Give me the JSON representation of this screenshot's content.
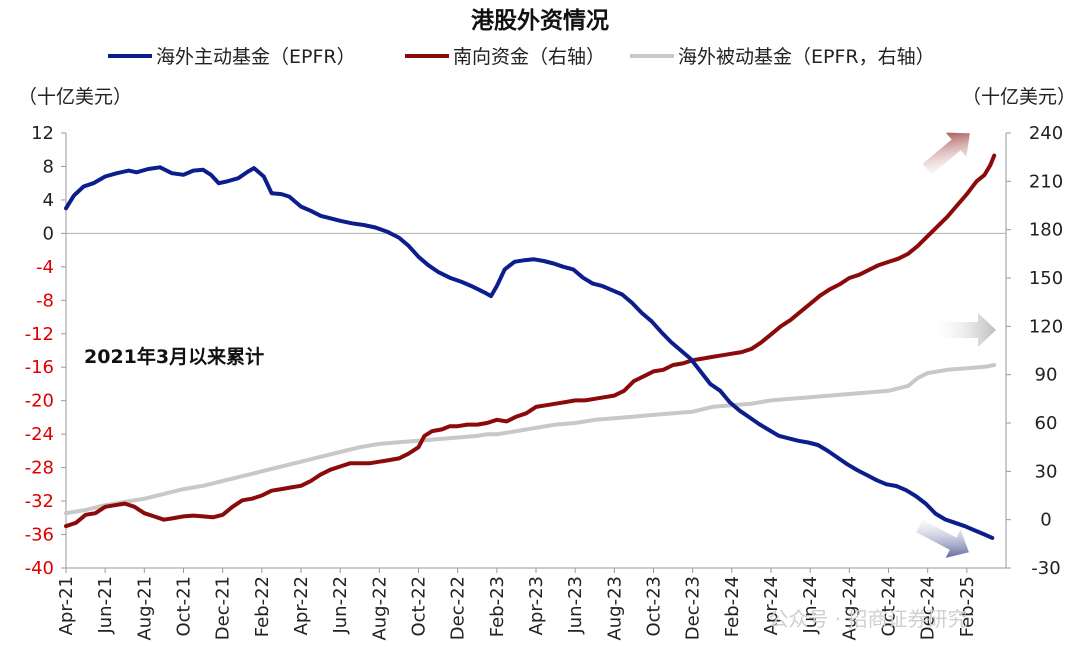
{
  "chart_data": {
    "type": "line",
    "title": "港股外资情况",
    "left_axis": {
      "unit": "（十亿美元）",
      "range": [
        -40,
        12
      ],
      "ticks": [
        12,
        8,
        4,
        0,
        -4,
        -8,
        -12,
        -16,
        -20,
        -24,
        -28,
        -32,
        -36,
        -40
      ],
      "negative_tick_color": "#e00000"
    },
    "right_axis": {
      "unit": "（十亿美元）",
      "range": [
        -30,
        240
      ],
      "ticks": [
        240,
        210,
        180,
        150,
        120,
        90,
        60,
        30,
        0,
        -30
      ]
    },
    "x_axis": {
      "start": "2021-04",
      "end": "2025-03",
      "tick_labels": [
        "Apr-21",
        "Jun-21",
        "Aug-21",
        "Oct-21",
        "Dec-21",
        "Feb-22",
        "Apr-22",
        "Jun-22",
        "Aug-22",
        "Oct-22",
        "Dec-22",
        "Feb-23",
        "Apr-23",
        "Jun-23",
        "Aug-23",
        "Oct-23",
        "Dec-23",
        "Feb-24",
        "Apr-24",
        "Jun-24",
        "Aug-24",
        "Oct-24",
        "Dec-24",
        "Feb-25"
      ]
    },
    "annotation": "2021年3月以来累计",
    "watermark": "公众号 · 招商证券研究",
    "series": [
      {
        "name": "海外主动基金（EPFR）",
        "axis": "left",
        "color": "#0b1e8c",
        "points": [
          [
            0,
            3
          ],
          [
            0.4,
            4.5
          ],
          [
            0.9,
            5.6
          ],
          [
            1.4,
            6.0
          ],
          [
            2,
            6.8
          ],
          [
            2.6,
            7.2
          ],
          [
            3.2,
            7.5
          ],
          [
            3.6,
            7.3
          ],
          [
            4.2,
            7.7
          ],
          [
            4.8,
            7.9
          ],
          [
            5.4,
            7.2
          ],
          [
            6,
            7.0
          ],
          [
            6.5,
            7.5
          ],
          [
            7,
            7.6
          ],
          [
            7.4,
            7.0
          ],
          [
            7.8,
            6.0
          ],
          [
            8.2,
            6.2
          ],
          [
            8.8,
            6.6
          ],
          [
            9.3,
            7.4
          ],
          [
            9.6,
            7.8
          ],
          [
            10.1,
            6.8
          ],
          [
            10.5,
            4.8
          ],
          [
            11,
            4.7
          ],
          [
            11.4,
            4.4
          ],
          [
            12,
            3.2
          ],
          [
            12.5,
            2.7
          ],
          [
            13,
            2.1
          ],
          [
            13.5,
            1.8
          ],
          [
            14,
            1.5
          ],
          [
            14.6,
            1.2
          ],
          [
            15.2,
            1.0
          ],
          [
            15.8,
            0.7
          ],
          [
            16.4,
            0.2
          ],
          [
            17,
            -0.5
          ],
          [
            17.5,
            -1.5
          ],
          [
            18,
            -2.8
          ],
          [
            18.5,
            -3.8
          ],
          [
            19,
            -4.6
          ],
          [
            19.6,
            -5.3
          ],
          [
            20.2,
            -5.8
          ],
          [
            20.8,
            -6.4
          ],
          [
            21.4,
            -7.1
          ],
          [
            21.7,
            -7.5
          ],
          [
            22,
            -6.3
          ],
          [
            22.4,
            -4.3
          ],
          [
            22.9,
            -3.4
          ],
          [
            23.4,
            -3.2
          ],
          [
            23.9,
            -3.1
          ],
          [
            24.4,
            -3.3
          ],
          [
            24.9,
            -3.6
          ],
          [
            25.4,
            -4.0
          ],
          [
            25.9,
            -4.3
          ],
          [
            26.4,
            -5.3
          ],
          [
            26.9,
            -6.0
          ],
          [
            27.4,
            -6.3
          ],
          [
            27.9,
            -6.8
          ],
          [
            28.4,
            -7.3
          ],
          [
            28.9,
            -8.3
          ],
          [
            29.4,
            -9.5
          ],
          [
            29.9,
            -10.5
          ],
          [
            30.4,
            -11.8
          ],
          [
            30.9,
            -13.0
          ],
          [
            31.4,
            -14.0
          ],
          [
            31.9,
            -15.0
          ],
          [
            32.4,
            -16.5
          ],
          [
            32.9,
            -18.0
          ],
          [
            33.4,
            -18.8
          ],
          [
            33.9,
            -20.2
          ],
          [
            34.4,
            -21.2
          ],
          [
            34.9,
            -22.0
          ],
          [
            35.4,
            -22.8
          ],
          [
            35.9,
            -23.5
          ],
          [
            36.4,
            -24.2
          ],
          [
            36.9,
            -24.5
          ],
          [
            37.4,
            -24.8
          ],
          [
            37.9,
            -25.0
          ],
          [
            38.4,
            -25.3
          ],
          [
            38.9,
            -26.0
          ],
          [
            39.4,
            -26.8
          ],
          [
            39.9,
            -27.6
          ],
          [
            40.4,
            -28.3
          ],
          [
            40.9,
            -28.9
          ],
          [
            41.4,
            -29.5
          ],
          [
            41.9,
            -30.0
          ],
          [
            42.4,
            -30.2
          ],
          [
            42.9,
            -30.7
          ],
          [
            43.4,
            -31.4
          ],
          [
            43.9,
            -32.3
          ],
          [
            44.4,
            -33.5
          ],
          [
            44.9,
            -34.2
          ],
          [
            45.4,
            -34.6
          ],
          [
            45.9,
            -35.0
          ],
          [
            46.4,
            -35.5
          ],
          [
            46.9,
            -36.0
          ],
          [
            47.3,
            -36.4
          ]
        ]
      },
      {
        "name": "南向资金（右轴）",
        "axis": "right",
        "color": "#8b0a0a",
        "points": [
          [
            0,
            -4
          ],
          [
            0.5,
            -2
          ],
          [
            1,
            3
          ],
          [
            1.5,
            4
          ],
          [
            2,
            8
          ],
          [
            2.5,
            9
          ],
          [
            3,
            10
          ],
          [
            3.5,
            8
          ],
          [
            4,
            4
          ],
          [
            4.5,
            2
          ],
          [
            5,
            0
          ],
          [
            5.5,
            1
          ],
          [
            6,
            2
          ],
          [
            6.5,
            2.5
          ],
          [
            7,
            2
          ],
          [
            7.5,
            1.5
          ],
          [
            8,
            3
          ],
          [
            8.5,
            8
          ],
          [
            9,
            12
          ],
          [
            9.5,
            13
          ],
          [
            10,
            15
          ],
          [
            10.5,
            18
          ],
          [
            11,
            19
          ],
          [
            11.5,
            20
          ],
          [
            12,
            21
          ],
          [
            12.5,
            24
          ],
          [
            13,
            28
          ],
          [
            13.5,
            31
          ],
          [
            14,
            33
          ],
          [
            14.5,
            35
          ],
          [
            15,
            35
          ],
          [
            15.5,
            35
          ],
          [
            16,
            36
          ],
          [
            16.5,
            37
          ],
          [
            17,
            38
          ],
          [
            17.5,
            41
          ],
          [
            18,
            45
          ],
          [
            18.3,
            52
          ],
          [
            18.7,
            55
          ],
          [
            19.2,
            56
          ],
          [
            19.6,
            58
          ],
          [
            20,
            58
          ],
          [
            20.5,
            59
          ],
          [
            21,
            59
          ],
          [
            21.5,
            60
          ],
          [
            22,
            62
          ],
          [
            22.5,
            61
          ],
          [
            23,
            64
          ],
          [
            23.5,
            66
          ],
          [
            24,
            70
          ],
          [
            24.5,
            71
          ],
          [
            25,
            72
          ],
          [
            25.5,
            73
          ],
          [
            26,
            74
          ],
          [
            26.5,
            74
          ],
          [
            27,
            75
          ],
          [
            27.5,
            76
          ],
          [
            28,
            77
          ],
          [
            28.5,
            80
          ],
          [
            29,
            86
          ],
          [
            29.5,
            89
          ],
          [
            30,
            92
          ],
          [
            30.5,
            93
          ],
          [
            31,
            96
          ],
          [
            31.5,
            97
          ],
          [
            32,
            99
          ],
          [
            32.5,
            100
          ],
          [
            33,
            101
          ],
          [
            33.5,
            102
          ],
          [
            34,
            103
          ],
          [
            34.5,
            104
          ],
          [
            35,
            106
          ],
          [
            35.5,
            110
          ],
          [
            36,
            115
          ],
          [
            36.5,
            120
          ],
          [
            37,
            124
          ],
          [
            37.5,
            129
          ],
          [
            38,
            134
          ],
          [
            38.5,
            139
          ],
          [
            39,
            143
          ],
          [
            39.5,
            146
          ],
          [
            40,
            150
          ],
          [
            40.5,
            152
          ],
          [
            41,
            155
          ],
          [
            41.5,
            158
          ],
          [
            42,
            160
          ],
          [
            42.5,
            162
          ],
          [
            43,
            165
          ],
          [
            43.5,
            170
          ],
          [
            44,
            176
          ],
          [
            44.5,
            182
          ],
          [
            45,
            188
          ],
          [
            45.5,
            195
          ],
          [
            46,
            202
          ],
          [
            46.5,
            210
          ],
          [
            46.9,
            214
          ],
          [
            47.2,
            220
          ],
          [
            47.4,
            226
          ]
        ]
      },
      {
        "name": "海外被动基金（EPFR，右轴）",
        "axis": "right",
        "color": "#c8c8c8",
        "points": [
          [
            0,
            4
          ],
          [
            1,
            6
          ],
          [
            2,
            9
          ],
          [
            3,
            11
          ],
          [
            4,
            13
          ],
          [
            5,
            16
          ],
          [
            6,
            19
          ],
          [
            7,
            21
          ],
          [
            8,
            24
          ],
          [
            9,
            27
          ],
          [
            10,
            30
          ],
          [
            11,
            33
          ],
          [
            12,
            36
          ],
          [
            13,
            39
          ],
          [
            14,
            42
          ],
          [
            15,
            45
          ],
          [
            16,
            47
          ],
          [
            17,
            48
          ],
          [
            18,
            49
          ],
          [
            19,
            50
          ],
          [
            20,
            51
          ],
          [
            21,
            52
          ],
          [
            21.5,
            53
          ],
          [
            22,
            53
          ],
          [
            22.5,
            54
          ],
          [
            23,
            55
          ],
          [
            24,
            57
          ],
          [
            25,
            59
          ],
          [
            26,
            60
          ],
          [
            27,
            62
          ],
          [
            28,
            63
          ],
          [
            29,
            64
          ],
          [
            30,
            65
          ],
          [
            31,
            66
          ],
          [
            32,
            67
          ],
          [
            33,
            70
          ],
          [
            34,
            71
          ],
          [
            35,
            72
          ],
          [
            36,
            74
          ],
          [
            37,
            75
          ],
          [
            38,
            76
          ],
          [
            39,
            77
          ],
          [
            40,
            78
          ],
          [
            41,
            79
          ],
          [
            42,
            80
          ],
          [
            43,
            83
          ],
          [
            43.5,
            88
          ],
          [
            44,
            91
          ],
          [
            45,
            93
          ],
          [
            46,
            94
          ],
          [
            47,
            95
          ],
          [
            47.4,
            96
          ]
        ]
      }
    ]
  }
}
